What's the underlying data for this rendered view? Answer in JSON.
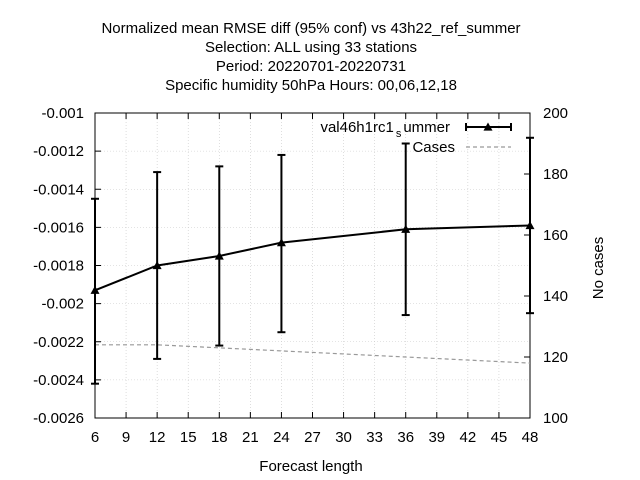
{
  "chart_data": {
    "type": "line",
    "title_lines": [
      "Normalized mean RMSE diff (95% conf) vs 43h22_ref_summer",
      "Selection: ALL using    33 stations",
      "Period: 20220701-20220731",
      "Specific humidity 50hPa   Hours:  00,06,12,18"
    ],
    "xlabel": "Forecast length",
    "ylabel": "",
    "y2label": "No cases",
    "xlim": [
      6,
      48
    ],
    "ylim": [
      -0.0026,
      -0.001
    ],
    "y2lim": [
      100,
      200
    ],
    "xticks": [
      "6",
      "9",
      "12",
      "15",
      "18",
      "21",
      "24",
      "27",
      "30",
      "33",
      "36",
      "39",
      "42",
      "45",
      "48"
    ],
    "yticks": [
      "-0.001",
      "-0.0012",
      "-0.0014",
      "-0.0016",
      "-0.0018",
      "-0.002",
      "-0.0022",
      "-0.0024",
      "-0.0026"
    ],
    "y2ticks": [
      "200",
      "180",
      "160",
      "140",
      "120",
      "100"
    ],
    "grid": true,
    "legend_position": "top-right",
    "series": [
      {
        "name": "val46h1rc1_summer",
        "legend_label": "val46h1rc1",
        "legend_sub": "s",
        "legend_tail": "ummer",
        "axis": "left",
        "color": "#000000",
        "style": "solid-triangles-errorbars",
        "x": [
          6,
          12,
          18,
          24,
          36,
          48
        ],
        "y": [
          -0.00193,
          -0.0018,
          -0.00175,
          -0.00168,
          -0.00161,
          -0.00159
        ],
        "err_low": [
          -0.00242,
          -0.00229,
          -0.00222,
          -0.00215,
          -0.00206,
          -0.00205
        ],
        "err_high": [
          -0.00145,
          -0.00131,
          -0.00128,
          -0.00122,
          -0.00116,
          -0.00113
        ]
      },
      {
        "name": "Cases",
        "axis": "right",
        "color": "#999999",
        "style": "dashed",
        "x": [
          6,
          12,
          18,
          24,
          36,
          48
        ],
        "y": [
          124,
          124,
          123,
          122,
          120,
          118
        ]
      }
    ]
  }
}
